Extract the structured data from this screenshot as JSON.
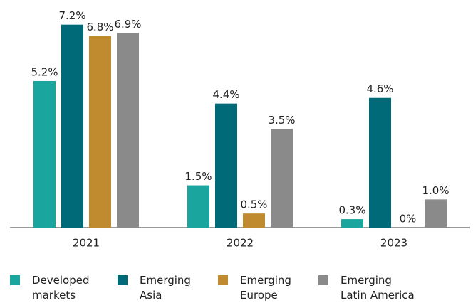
{
  "chart_data": {
    "type": "bar",
    "categories": [
      "2021",
      "2022",
      "2023"
    ],
    "series": [
      {
        "name": "Developed markets",
        "color": "#1aa59e",
        "values": [
          5.2,
          1.5,
          0.3
        ],
        "value_labels": [
          "5.2%",
          "1.5%",
          "0.3%"
        ]
      },
      {
        "name": "Emerging Asia",
        "color": "#006a78",
        "values": [
          7.2,
          4.4,
          4.6
        ],
        "value_labels": [
          "7.2%",
          "4.4%",
          "4.6%"
        ]
      },
      {
        "name": "Emerging Europe",
        "color": "#c08a2e",
        "values": [
          6.8,
          0.5,
          0
        ],
        "value_labels": [
          "6.8%",
          "0.5%",
          "0%"
        ]
      },
      {
        "name": "Emerging Latin America",
        "color": "#8a8a8b",
        "values": [
          6.9,
          3.5,
          1
        ],
        "value_labels": [
          "6.9%",
          "3.5%",
          "1.0%"
        ]
      }
    ],
    "ylim": [
      0,
      8
    ]
  }
}
